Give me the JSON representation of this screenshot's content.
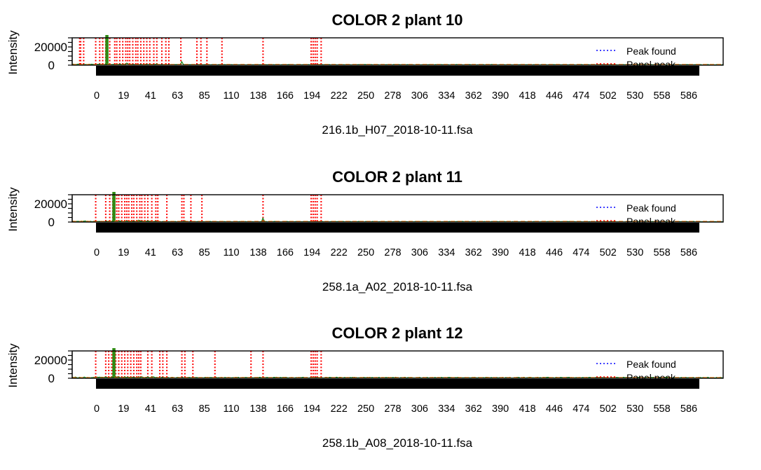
{
  "chart_data": [
    {
      "type": "line",
      "title": "COLOR 2 plant 10",
      "ylabel": "Intensity",
      "xlabel": "216.1b_H07_2018-10-11.fsa",
      "ylim": [
        0,
        30000
      ],
      "y_ticks": [
        "20000",
        "0"
      ],
      "x_ticks": [
        "0",
        "19",
        "41",
        "63",
        "85",
        "110",
        "138",
        "166",
        "194",
        "222",
        "250",
        "278",
        "306",
        "334",
        "362",
        "390",
        "418",
        "446",
        "474",
        "502",
        "530",
        "558",
        "586"
      ],
      "legend": {
        "position": "top-right",
        "entries": [
          {
            "name": "Peak found",
            "color": "#0000ff",
            "style": "dotted"
          },
          {
            "name": "Panel peak",
            "color": "#ff0000",
            "style": "dotted"
          }
        ]
      },
      "panel_peaks": [
        -17,
        -16,
        -13,
        -1,
        3,
        6,
        9,
        13,
        18,
        20,
        23,
        26,
        29,
        31,
        33,
        36,
        39,
        41,
        44,
        47,
        50,
        53,
        57,
        60,
        65,
        69,
        72,
        84,
        100,
        104,
        110,
        125,
        166,
        214,
        216,
        218,
        220,
        224
      ],
      "peak_found": [],
      "main_peak": {
        "x": 10,
        "y": 45000
      },
      "secondary_peaks": [
        {
          "x": 85,
          "y": 3500
        },
        {
          "x": 30,
          "y": 1500
        },
        {
          "x": 60,
          "y": 800
        }
      ]
    },
    {
      "type": "line",
      "title": "COLOR 2 plant 11",
      "ylabel": "Intensity",
      "xlabel": "258.1a_A02_2018-10-11.fsa",
      "ylim": [
        0,
        30000
      ],
      "y_ticks": [
        "20000",
        "0"
      ],
      "x_ticks": [
        "0",
        "19",
        "41",
        "63",
        "85",
        "110",
        "138",
        "166",
        "194",
        "222",
        "250",
        "278",
        "306",
        "334",
        "362",
        "390",
        "418",
        "446",
        "474",
        "502",
        "530",
        "558",
        "586"
      ],
      "legend": {
        "position": "top-right",
        "entries": [
          {
            "name": "Peak found",
            "color": "#0000ff",
            "style": "dotted"
          },
          {
            "name": "Panel peak",
            "color": "#ff0000",
            "style": "dotted"
          }
        ]
      },
      "panel_peaks": [
        -1,
        9,
        13,
        16,
        18,
        20,
        22,
        25,
        28,
        30,
        32,
        35,
        37,
        40,
        43,
        45,
        48,
        51,
        55,
        59,
        61,
        70,
        85,
        87,
        94,
        105,
        166,
        214,
        216,
        218,
        220,
        224
      ],
      "peak_found": [],
      "main_peak": {
        "x": 17,
        "y": 45000
      },
      "secondary_peaks": [
        {
          "x": 166,
          "y": 4000
        },
        {
          "x": 42,
          "y": 1200
        },
        {
          "x": 88,
          "y": 900
        }
      ]
    },
    {
      "type": "line",
      "title": "COLOR 2 plant 12",
      "ylabel": "Intensity",
      "xlabel": "258.1b_A08_2018-10-11.fsa",
      "ylim": [
        0,
        30000
      ],
      "y_ticks": [
        "20000",
        "0"
      ],
      "x_ticks": [
        "0",
        "19",
        "41",
        "63",
        "85",
        "110",
        "138",
        "166",
        "194",
        "222",
        "250",
        "278",
        "306",
        "334",
        "362",
        "390",
        "418",
        "446",
        "474",
        "502",
        "530",
        "558",
        "586"
      ],
      "legend": {
        "position": "top-right",
        "entries": [
          {
            "name": "Peak found",
            "color": "#0000ff",
            "style": "dotted"
          },
          {
            "name": "Panel peak",
            "color": "#ff0000",
            "style": "dotted"
          }
        ]
      },
      "panel_peaks": [
        -1,
        9,
        12,
        15,
        19,
        22,
        25,
        28,
        31,
        34,
        37,
        40,
        42,
        44,
        51,
        55,
        63,
        66,
        70,
        85,
        88,
        96,
        118,
        154,
        166,
        214,
        216,
        218,
        220,
        224
      ],
      "peak_found": [],
      "main_peak": {
        "x": 17,
        "y": 40000
      },
      "secondary_peaks": [
        {
          "x": 45,
          "y": 1200
        },
        {
          "x": 28,
          "y": 900
        }
      ]
    }
  ]
}
